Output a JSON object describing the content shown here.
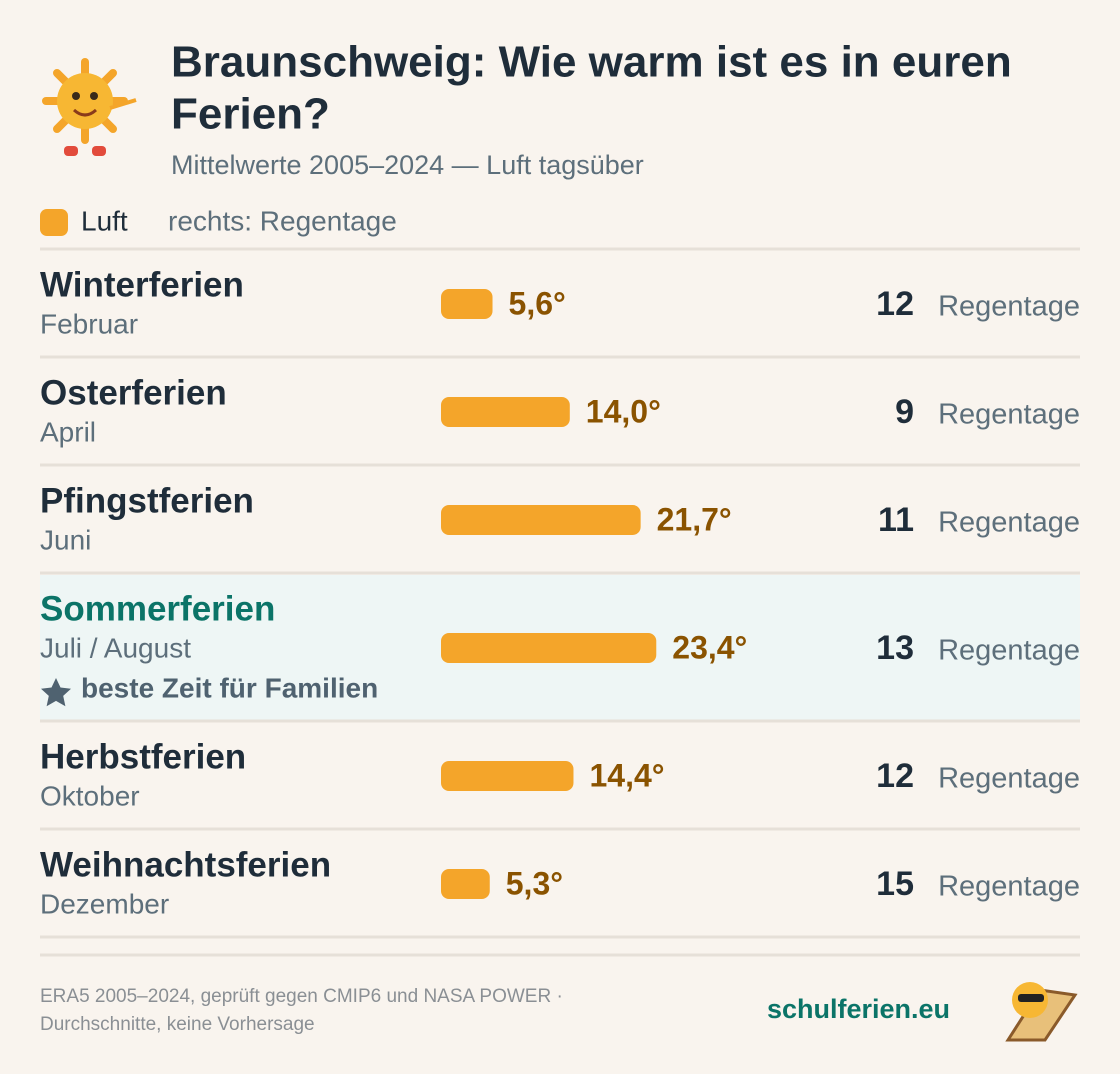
{
  "chart_data": {
    "type": "bar",
    "title_lines": [
      "Braunschweig: Wie warm ist es in euren",
      "Ferien?"
    ],
    "subtitle": "Mittelwerte 2005–2024 — Luft tagsüber",
    "legend": {
      "series_name": "Luft",
      "note": "rechts: Regentage"
    },
    "color": "#f4a52a",
    "categories": [
      "Winterferien",
      "Osterferien",
      "Pfingstferien",
      "Sommerferien",
      "Herbstferien",
      "Weihnachtsferien"
    ],
    "months": [
      "Februar",
      "April",
      "Juni",
      "Juli / August",
      "Oktober",
      "Dezember"
    ],
    "values": [
      5.6,
      14.0,
      21.7,
      23.4,
      14.4,
      5.3
    ],
    "value_labels": [
      "5,6°",
      "14,0°",
      "21,7°",
      "23,4°",
      "14,4°",
      "5,3°"
    ],
    "rain_days": [
      12,
      9,
      11,
      13,
      12,
      15
    ],
    "rain_unit": "Regentage",
    "highlight": {
      "category": "Sommerferien",
      "note": "beste Zeit für Familien"
    },
    "footer": {
      "source_lines": [
        "ERA5 2005–2024, geprüft gegen CMIP6 und NASA POWER ·",
        "Durchschnitte, keine Vorhersage"
      ],
      "brand": "schulferien.eu"
    }
  }
}
